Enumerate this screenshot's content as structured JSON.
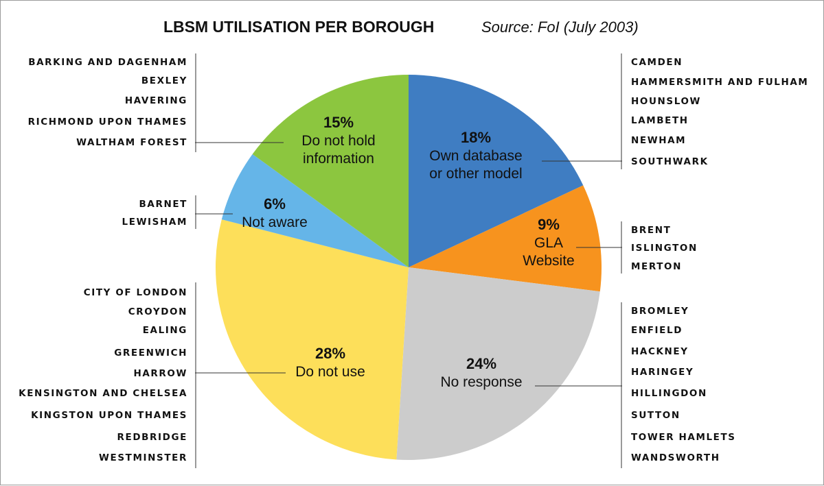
{
  "chart_data": {
    "type": "pie",
    "title": "LBSM  UTILISATION PER BOROUGH",
    "source": "Source: FoI (July 2003)",
    "slices": [
      {
        "key": "own",
        "value": 18,
        "percent_label": "18%",
        "label_lines": [
          "Own database",
          "or other model"
        ],
        "color": "#3f7dc2",
        "boroughs": [
          "CAMDEN",
          "HAMMERSMITH AND FULHAM",
          "HOUNSLOW",
          "LAMBETH",
          "NEWHAM",
          "SOUTHWARK"
        ]
      },
      {
        "key": "gla",
        "value": 9,
        "percent_label": "9%",
        "label_lines": [
          "GLA",
          "Website"
        ],
        "color": "#f7931e",
        "boroughs": [
          "BRENT",
          "ISLINGTON",
          "MERTON"
        ]
      },
      {
        "key": "noresp",
        "value": 24,
        "percent_label": "24%",
        "label_lines": [
          "No response"
        ],
        "color": "#cccccc",
        "boroughs": [
          "BROMLEY",
          "ENFIELD",
          "HACKNEY",
          "HARINGEY",
          "HILLINGDON",
          "SUTTON",
          "TOWER HAMLETS",
          "WANDSWORTH"
        ]
      },
      {
        "key": "notuse",
        "value": 28,
        "percent_label": "28%",
        "label_lines": [
          "Do not use"
        ],
        "color": "#fddf5a",
        "boroughs": [
          "CITY OF LONDON",
          "CROYDON",
          "EALING",
          "GREENWICH",
          "HARROW",
          "KENSINGTON AND CHELSEA",
          "KINGSTON UPON THAMES",
          "REDBRIDGE",
          "WESTMINSTER"
        ]
      },
      {
        "key": "notaware",
        "value": 6,
        "percent_label": "6%",
        "label_lines": [
          "Not aware"
        ],
        "color": "#65b5e8",
        "boroughs": [
          "BARNET",
          "LEWISHAM"
        ]
      },
      {
        "key": "nohold",
        "value": 15,
        "percent_label": "15%",
        "label_lines": [
          "Do not hold",
          "information"
        ],
        "color": "#8cc63f",
        "boroughs": [
          "BARKING AND DAGENHAM",
          "BEXLEY",
          "HAVERING",
          "RICHMOND UPON THAMES",
          "WALTHAM FOREST"
        ]
      }
    ]
  }
}
